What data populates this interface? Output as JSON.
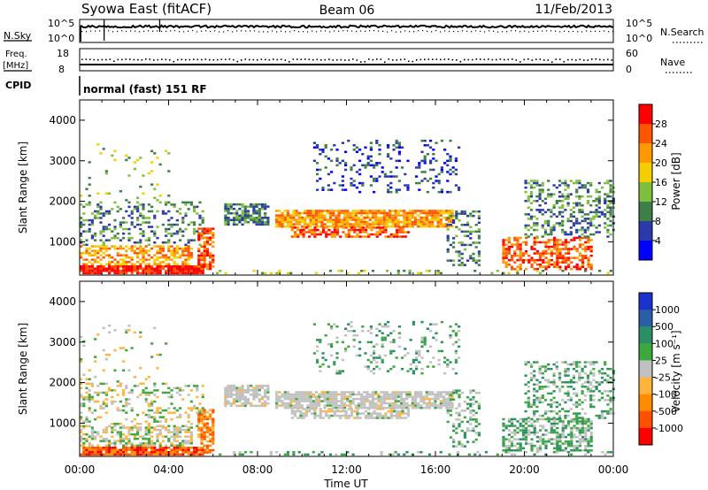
{
  "header": {
    "title": "Syowa East (fitACF)",
    "beam": "Beam 06",
    "date": "11/Feb/2013"
  },
  "top_panels": {
    "nsky_label": "N.Sky",
    "nsky_ticks": [
      "10^5",
      "10^0"
    ],
    "nsearch_label": "N.Search",
    "nsearch_ticks": [
      "10^5",
      "10^0"
    ],
    "freq_label": "Freq.",
    "freq_unit": "[MHz]",
    "freq_ticks": [
      "18",
      "8"
    ],
    "nave_label": "Nave",
    "nave_ticks": [
      "60",
      "0"
    ],
    "cpid_label": "CPID",
    "cpid_text": "normal (fast) 151 RF"
  },
  "chart_data": [
    {
      "type": "heatmap",
      "name": "power",
      "ylabel": "Slant Range [km]",
      "y_ticks": [
        1000,
        2000,
        3000,
        4000
      ],
      "ylim": [
        180,
        4500
      ],
      "colorbar_label": "Power [dB]",
      "colorbar_ticks": [
        "28",
        "24",
        "20",
        "16",
        "12",
        "8",
        "4"
      ],
      "colors": [
        "#0000ff",
        "#2b3aa8",
        "#3d7f47",
        "#7fbf3f",
        "#f5ce00",
        "#ff9900",
        "#ff5500",
        "#ff0000"
      ]
    },
    {
      "type": "heatmap",
      "name": "velocity",
      "ylabel": "Slant Range [km]",
      "y_ticks": [
        1000,
        2000,
        3000,
        4000
      ],
      "ylim": [
        180,
        4500
      ],
      "colorbar_label": "Velocity [m s⁻¹]",
      "colorbar_ticks": [
        "1000",
        "500",
        "100",
        "25",
        "-25",
        "-100",
        "-500",
        "-1000"
      ],
      "colors": [
        "#ff0000",
        "#ff5000",
        "#ff8c00",
        "#ffb43c",
        "#c0c0c0",
        "#3da83d",
        "#2a8f62",
        "#2a5fa8",
        "#1a33cc"
      ]
    }
  ],
  "x_axis": {
    "label": "Time UT",
    "ticks": [
      "00:00",
      "04:00",
      "08:00",
      "12:00",
      "16:00",
      "20:00",
      "00:00"
    ]
  }
}
